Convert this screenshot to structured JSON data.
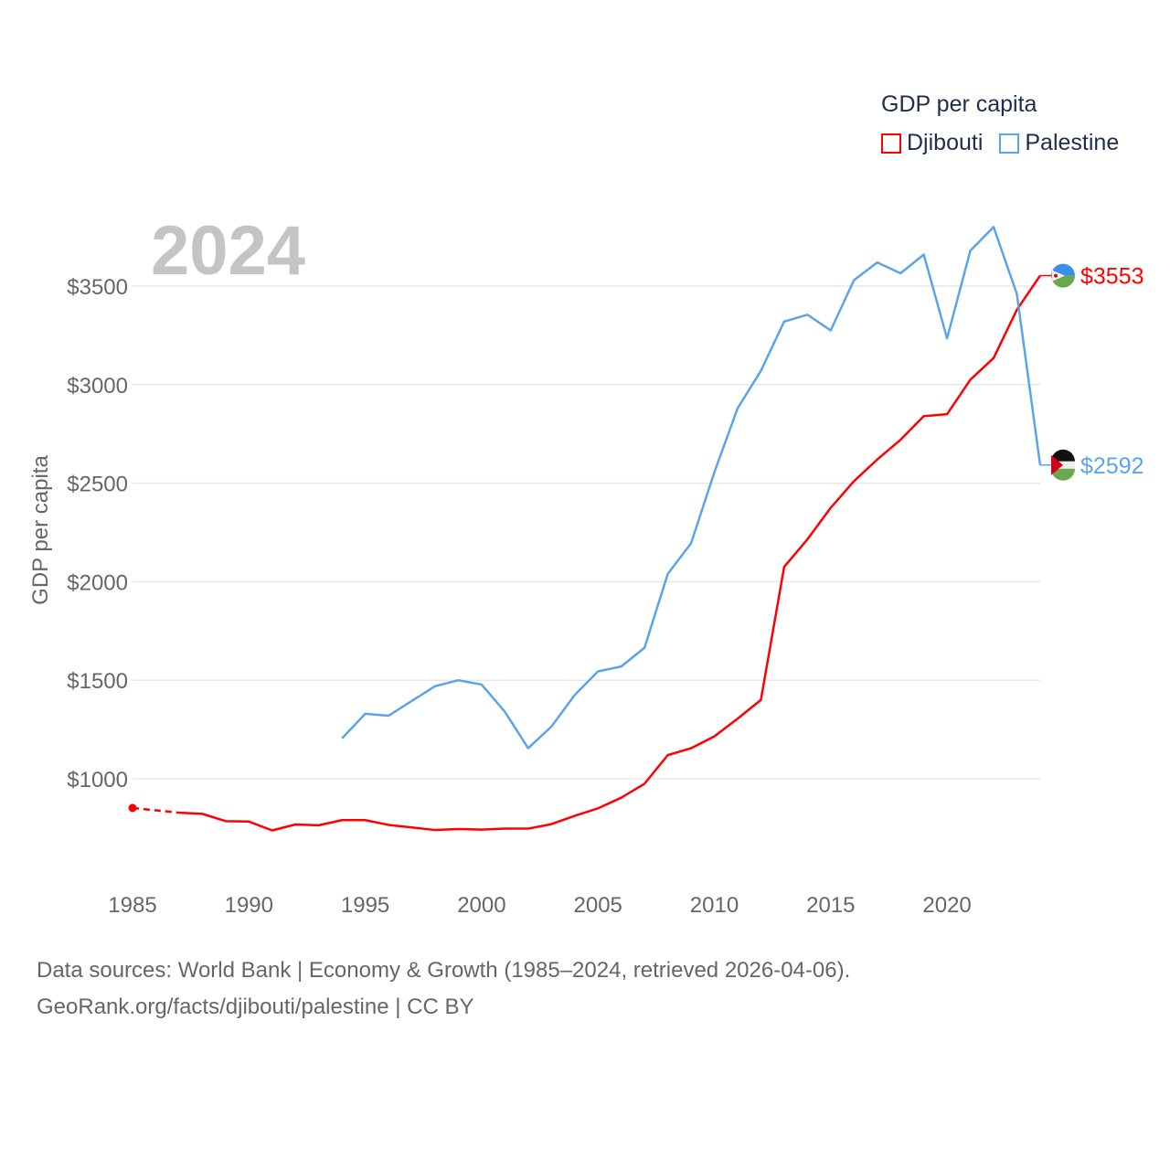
{
  "chart_data": {
    "type": "line",
    "title": "GDP per capita",
    "year_label": "2024",
    "ylabel": "GDP per capita",
    "xlabel": "",
    "xlim": [
      1985,
      2024
    ],
    "ylim": [
      600,
      3900
    ],
    "xticks": [
      1985,
      1990,
      1995,
      2000,
      2005,
      2010,
      2015,
      2020
    ],
    "yticks": [
      1000,
      1500,
      2000,
      2500,
      3000,
      3500
    ],
    "ytick_labels": [
      "$1000",
      "$1500",
      "$2000",
      "$2500",
      "$3000",
      "$3500"
    ],
    "grid": true,
    "legend_placement": "top-right",
    "series": [
      {
        "name": "Djibouti",
        "color": "#ff0000",
        "end_label": "$3553",
        "x": [
          1985,
          1987,
          1988,
          1989,
          1990,
          1991,
          1992,
          1993,
          1994,
          1995,
          1996,
          1997,
          1998,
          1999,
          2000,
          2001,
          2002,
          2003,
          2004,
          2005,
          2006,
          2007,
          2008,
          2009,
          2010,
          2011,
          2012,
          2013,
          2014,
          2015,
          2016,
          2017,
          2018,
          2019,
          2020,
          2021,
          2022,
          2023,
          2024
        ],
        "values": [
          852,
          828,
          822,
          785,
          783,
          738,
          768,
          764,
          790,
          790,
          766,
          753,
          740,
          745,
          742,
          747,
          747,
          770,
          812,
          850,
          904,
          975,
          1120,
          1155,
          1215,
          1305,
          1400,
          2075,
          2215,
          2375,
          2510,
          2620,
          2720,
          2840,
          2850,
          3025,
          3135,
          3380,
          3553
        ]
      },
      {
        "name": "Palestine",
        "color": "#5ba4ea",
        "end_label": "$2592",
        "x": [
          1994,
          1995,
          1996,
          1997,
          1998,
          1999,
          2000,
          2001,
          2002,
          2003,
          2004,
          2005,
          2006,
          2007,
          2008,
          2009,
          2010,
          2011,
          2012,
          2013,
          2014,
          2015,
          2016,
          2017,
          2018,
          2019,
          2020,
          2021,
          2022,
          2023,
          2024
        ],
        "values": [
          1205,
          1330,
          1320,
          1395,
          1470,
          1500,
          1478,
          1340,
          1155,
          1265,
          1425,
          1545,
          1570,
          1665,
          2040,
          2195,
          2555,
          2880,
          3070,
          3320,
          3355,
          3275,
          3530,
          3620,
          3565,
          3660,
          3235,
          3680,
          3800,
          3460,
          2592
        ]
      }
    ]
  },
  "footer": {
    "line1": "Data sources: World Bank | Economy & Growth (1985–2024, retrieved 2026-04-06).",
    "line2": "GeoRank.org/facts/djibouti/palestine | CC BY"
  }
}
